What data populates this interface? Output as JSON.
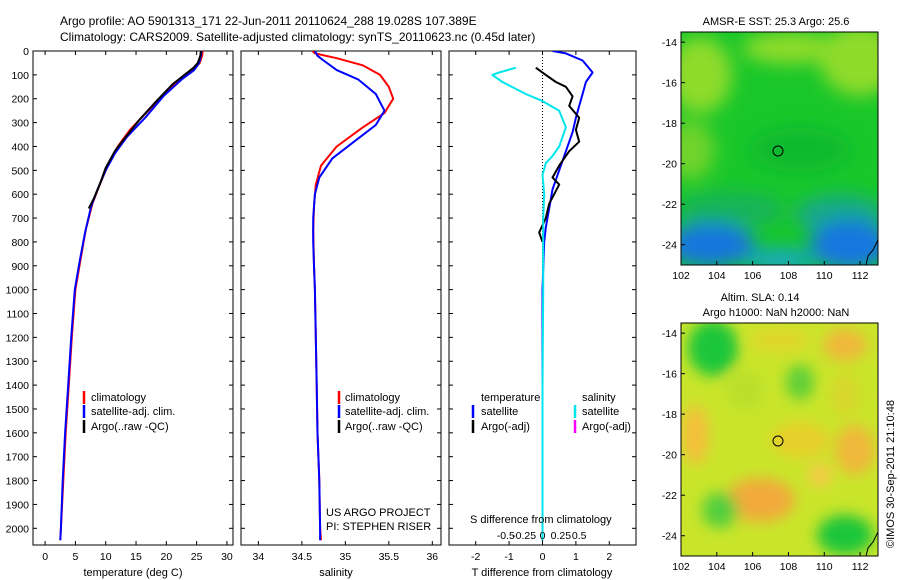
{
  "header": {
    "line1": "Argo profile: AO 5901313_171 22-Jun-2011 20110624_288 19.028S 107.389E",
    "line2": "Climatology: CARS2009. Satellite-adjusted climatology: synTS_20110623.nc (0.45d later)"
  },
  "colors": {
    "climatology": "#ff0000",
    "satellite": "#0000ff",
    "argo": "#000000",
    "sat_salinity": "#00e5ee",
    "argo_salinity_adj": "#ff00ff"
  },
  "chart_data": [
    {
      "type": "line",
      "id": "temperature",
      "xlabel": "temperature (deg C)",
      "xlim": [
        -2,
        31
      ],
      "xticks": [
        0,
        5,
        10,
        15,
        20,
        25,
        30
      ],
      "ylim": [
        2070,
        0
      ],
      "yticks": [
        0,
        100,
        200,
        300,
        400,
        500,
        600,
        700,
        800,
        900,
        1000,
        1100,
        1200,
        1300,
        1400,
        1500,
        1600,
        1700,
        1800,
        1900,
        2000
      ],
      "legend": [
        "climatology",
        "satellite-adj. clim.",
        "Argo(..raw -QC)"
      ],
      "series": [
        {
          "name": "climatology",
          "color": "#ff0000",
          "points": [
            [
              26,
              0
            ],
            [
              25.9,
              20
            ],
            [
              25.5,
              50
            ],
            [
              24.8,
              70
            ],
            [
              23,
              100
            ],
            [
              20,
              170
            ],
            [
              17,
              250
            ],
            [
              14,
              330
            ],
            [
              12,
              400
            ],
            [
              10.5,
              470
            ],
            [
              9,
              560
            ],
            [
              7.8,
              640
            ],
            [
              6.7,
              750
            ],
            [
              5.8,
              880
            ],
            [
              5,
              1000
            ],
            [
              4.4,
              1200
            ],
            [
              3.9,
              1400
            ],
            [
              3.4,
              1600
            ],
            [
              3,
              1800
            ],
            [
              2.6,
              2000
            ],
            [
              2.5,
              2050
            ]
          ]
        },
        {
          "name": "satellite-adj. clim.",
          "color": "#0000ff",
          "points": [
            [
              25.8,
              0
            ],
            [
              25.7,
              20
            ],
            [
              25.4,
              50
            ],
            [
              24.6,
              80
            ],
            [
              22.5,
              120
            ],
            [
              19.5,
              190
            ],
            [
              16.5,
              280
            ],
            [
              13.5,
              360
            ],
            [
              11.5,
              430
            ],
            [
              10,
              500
            ],
            [
              8.8,
              570
            ],
            [
              7.6,
              650
            ],
            [
              6.6,
              760
            ],
            [
              5.7,
              880
            ],
            [
              4.9,
              1000
            ],
            [
              4.3,
              1200
            ],
            [
              3.8,
              1400
            ],
            [
              3.3,
              1600
            ],
            [
              2.9,
              1800
            ],
            [
              2.6,
              2000
            ],
            [
              2.5,
              2050
            ]
          ]
        },
        {
          "name": "Argo(..raw -QC)",
          "color": "#000000",
          "points": [
            [
              25.7,
              0
            ],
            [
              25.6,
              20
            ],
            [
              25.2,
              50
            ],
            [
              24.5,
              70
            ],
            [
              23.5,
              90
            ],
            [
              21,
              140
            ],
            [
              18,
              220
            ],
            [
              15.5,
              290
            ],
            [
              13,
              370
            ],
            [
              11.5,
              420
            ],
            [
              10,
              490
            ],
            [
              9,
              560
            ],
            [
              8,
              620
            ],
            [
              7.2,
              660
            ]
          ]
        }
      ]
    },
    {
      "type": "line",
      "id": "salinity",
      "xlabel": "salinity",
      "xlim": [
        33.8,
        36.1
      ],
      "xticks": [
        34,
        34.5,
        35,
        35.5,
        36
      ],
      "ylim": [
        2070,
        0
      ],
      "legend": [
        "climatology",
        "satellite-adj. clim.",
        "Argo(..raw -QC)"
      ],
      "annotation": [
        "US ARGO PROJECT",
        "PI: STEPHEN RISER"
      ],
      "series": [
        {
          "name": "climatology",
          "color": "#ff0000",
          "points": [
            [
              34.62,
              0
            ],
            [
              34.65,
              10
            ],
            [
              34.9,
              30
            ],
            [
              35.2,
              60
            ],
            [
              35.4,
              100
            ],
            [
              35.5,
              150
            ],
            [
              35.55,
              200
            ],
            [
              35.45,
              260
            ],
            [
              35.2,
              320
            ],
            [
              34.9,
              400
            ],
            [
              34.72,
              480
            ],
            [
              34.66,
              560
            ],
            [
              34.64,
              650
            ],
            [
              34.63,
              750
            ],
            [
              34.64,
              900
            ],
            [
              34.65,
              1000
            ],
            [
              34.66,
              1200
            ],
            [
              34.67,
              1400
            ],
            [
              34.68,
              1600
            ],
            [
              34.7,
              1800
            ],
            [
              34.71,
              2000
            ],
            [
              34.72,
              2050
            ]
          ]
        },
        {
          "name": "satellite-adj. clim.",
          "color": "#0000ff",
          "points": [
            [
              34.65,
              0
            ],
            [
              34.68,
              20
            ],
            [
              34.75,
              40
            ],
            [
              34.9,
              80
            ],
            [
              35.15,
              120
            ],
            [
              35.35,
              180
            ],
            [
              35.45,
              250
            ],
            [
              35.35,
              310
            ],
            [
              35.1,
              380
            ],
            [
              34.85,
              450
            ],
            [
              34.7,
              530
            ],
            [
              34.65,
              600
            ],
            [
              34.63,
              700
            ],
            [
              34.63,
              800
            ],
            [
              34.64,
              900
            ],
            [
              34.65,
              1000
            ],
            [
              34.66,
              1200
            ],
            [
              34.67,
              1400
            ],
            [
              34.68,
              1600
            ],
            [
              34.7,
              1800
            ],
            [
              34.71,
              2000
            ],
            [
              34.71,
              2050
            ]
          ]
        },
        {
          "name": "Argo(..raw -QC)",
          "color": "#000000",
          "points": []
        }
      ]
    },
    {
      "type": "line",
      "id": "difference",
      "xlabel": "T difference from climatology",
      "xlabel_top": "S difference from climatology",
      "xlim": [
        -2.8,
        2.8
      ],
      "xticks": [
        -2,
        -1,
        0,
        1,
        2
      ],
      "xticks_top": [
        "-0.5",
        "-0.25",
        "0",
        "0.25",
        "0.5"
      ],
      "ylim": [
        2070,
        0
      ],
      "legend_temperature_title": "temperature",
      "legend_salinity_title": "salinity",
      "legend": [
        "satellite",
        "Argo(-adj)",
        "satellite",
        "Argo(-adj)"
      ],
      "series": [
        {
          "name": "temperature satellite",
          "color": "#0000ff",
          "points": [
            [
              0.3,
              0
            ],
            [
              0.7,
              10
            ],
            [
              1.2,
              40
            ],
            [
              1.5,
              90
            ],
            [
              1.3,
              130
            ],
            [
              1.2,
              180
            ],
            [
              1.1,
              230
            ],
            [
              1.0,
              280
            ],
            [
              0.9,
              340
            ],
            [
              0.7,
              420
            ],
            [
              0.5,
              500
            ],
            [
              0.3,
              580
            ],
            [
              0.2,
              660
            ],
            [
              0.1,
              740
            ],
            [
              0.05,
              800
            ],
            [
              0,
              1000
            ],
            [
              0,
              1200
            ],
            [
              0,
              1500
            ],
            [
              0,
              2000
            ],
            [
              0,
              2050
            ]
          ]
        },
        {
          "name": "temperature Argo(-adj)",
          "color": "#000000",
          "points": [
            [
              -0.2,
              70
            ],
            [
              0.1,
              100
            ],
            [
              0.4,
              130
            ],
            [
              0.7,
              150
            ],
            [
              0.9,
              190
            ],
            [
              0.8,
              230
            ],
            [
              1.1,
              280
            ],
            [
              1.0,
              330
            ],
            [
              1.1,
              380
            ],
            [
              0.8,
              420
            ],
            [
              0.5,
              480
            ],
            [
              0.3,
              530
            ],
            [
              0.5,
              560
            ],
            [
              0.35,
              600
            ],
            [
              0.2,
              640
            ],
            [
              0.1,
              700
            ],
            [
              -0.1,
              760
            ],
            [
              0,
              800
            ]
          ]
        },
        {
          "name": "salinity satellite",
          "color": "#00e5ee",
          "points": [
            [
              -0.8,
              70
            ],
            [
              -1.3,
              90
            ],
            [
              -1.5,
              100
            ],
            [
              -1.2,
              130
            ],
            [
              -0.5,
              180
            ],
            [
              0,
              210
            ],
            [
              0.5,
              250
            ],
            [
              0.7,
              320
            ],
            [
              0.5,
              400
            ],
            [
              0.3,
              440
            ],
            [
              0.1,
              470
            ],
            [
              0,
              520
            ],
            [
              0.05,
              600
            ],
            [
              0.02,
              700
            ],
            [
              0.02,
              1000
            ],
            [
              0,
              1400
            ],
            [
              0,
              2000
            ],
            [
              0,
              2050
            ]
          ]
        },
        {
          "name": "salinity Argo(-adj)",
          "color": "#ff00ff",
          "points": []
        }
      ]
    },
    {
      "type": "heatmap",
      "id": "sst-map",
      "title": "AMSR-E SST: 25.3 Argo: 25.6",
      "xlim": [
        102,
        113
      ],
      "ylim": [
        -25,
        -13.5
      ],
      "xticks": [
        102,
        104,
        106,
        108,
        110,
        112
      ],
      "yticks": [
        -14,
        -16,
        -18,
        -20,
        -22,
        -24
      ],
      "marker": [
        107.389,
        -19.028
      ]
    },
    {
      "type": "heatmap",
      "id": "sla-map",
      "title": "Altim. SLA: 0.14",
      "subtitle": "Argo h1000: NaN h2000: NaN",
      "xlim": [
        102,
        113
      ],
      "ylim": [
        -25,
        -13.5
      ],
      "xticks": [
        102,
        104,
        106,
        108,
        110,
        112
      ],
      "yticks": [
        -14,
        -16,
        -18,
        -20,
        -22,
        -24
      ],
      "marker": [
        107.389,
        -19.028
      ]
    }
  ],
  "credit": "©IMOS 30-Sep-2011 21:10:48"
}
